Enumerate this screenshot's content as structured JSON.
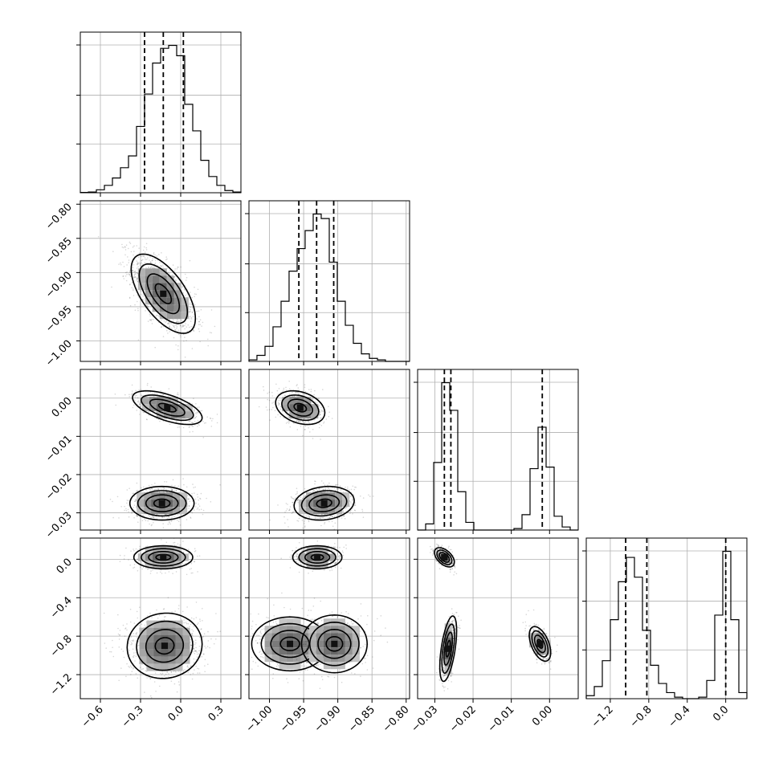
{
  "chart_data": {
    "type": "corner",
    "title": "",
    "params": [
      {
        "range": [
          -0.75,
          0.45
        ],
        "ticks": [
          -0.6,
          -0.3,
          0.0,
          0.3
        ],
        "tick_labels": [
          "−0.6",
          "−0.3",
          "0.0",
          "0.3"
        ],
        "quantiles": [
          -0.27,
          -0.13,
          0.02
        ],
        "hist_bins": [
          -0.75,
          -0.69,
          -0.63,
          -0.57,
          -0.51,
          -0.45,
          -0.39,
          -0.33,
          -0.27,
          -0.21,
          -0.15,
          -0.09,
          -0.03,
          0.03,
          0.09,
          0.15,
          0.21,
          0.27,
          0.33,
          0.39,
          0.45
        ],
        "hist_counts": [
          0.002,
          0.005,
          0.02,
          0.05,
          0.1,
          0.17,
          0.25,
          0.45,
          0.67,
          0.88,
          0.98,
          1.0,
          0.93,
          0.6,
          0.42,
          0.22,
          0.11,
          0.05,
          0.015,
          0.005
        ]
      },
      {
        "range": [
          -1.03,
          -0.795
        ],
        "ticks": [
          -1.0,
          -0.95,
          -0.9,
          -0.85,
          -0.8
        ],
        "tick_labels": [
          "−1.00",
          "−0.95",
          "−0.90",
          "−0.85",
          "−0.80"
        ],
        "quantiles": [
          -0.957,
          -0.931,
          -0.906
        ],
        "hist_bins": [
          -1.03,
          -1.0183,
          -1.0065,
          -0.9948,
          -0.983,
          -0.9713,
          -0.9595,
          -0.9478,
          -0.936,
          -0.9243,
          -0.9125,
          -0.9008,
          -0.889,
          -0.8773,
          -0.8655,
          -0.8538,
          -0.842,
          -0.8303,
          -0.8185,
          -0.8068,
          -0.795
        ],
        "hist_counts": [
          0.01,
          0.04,
          0.1,
          0.23,
          0.4,
          0.6,
          0.75,
          0.87,
          0.98,
          0.95,
          0.66,
          0.4,
          0.24,
          0.12,
          0.05,
          0.02,
          0.01,
          0.0,
          0.0,
          0.0
        ]
      },
      {
        "range": [
          -0.0345,
          0.0075
        ],
        "ticks": [
          -0.03,
          -0.02,
          -0.01,
          0.0
        ],
        "tick_labels": [
          "−0.03",
          "−0.02",
          "−0.01",
          "0.00"
        ],
        "quantiles": [
          -0.0275,
          -0.0258,
          -0.0019
        ],
        "hist_bins": [
          -0.0345,
          -0.0324,
          -0.0303,
          -0.0282,
          -0.0261,
          -0.024,
          -0.0219,
          -0.0198,
          -0.0177,
          -0.0156,
          -0.0135,
          -0.0114,
          -0.0093,
          -0.0072,
          -0.0051,
          -0.003,
          -0.0009,
          0.0012,
          0.0033,
          0.0054,
          0.0075
        ],
        "hist_counts": [
          0.0,
          0.04,
          0.44,
          0.96,
          0.78,
          0.25,
          0.05,
          0.0,
          0.0,
          0.0,
          0.0,
          0.0,
          0.01,
          0.1,
          0.4,
          0.67,
          0.41,
          0.09,
          0.02,
          0.0
        ]
      },
      {
        "range": [
          -1.45,
          0.22
        ],
        "ticks": [
          -1.2,
          -0.8,
          -0.4,
          0.0
        ],
        "tick_labels": [
          "−1.2",
          "−0.8",
          "−0.4",
          "0.0"
        ],
        "quantiles": [
          -1.04,
          -0.82,
          0.0
        ],
        "hist_bins": [
          -1.45,
          -1.3665,
          -1.283,
          -1.1995,
          -1.116,
          -1.0325,
          -0.949,
          -0.8655,
          -0.782,
          -0.6985,
          -0.615,
          -0.5315,
          -0.448,
          -0.3645,
          -0.281,
          -0.1975,
          -0.114,
          -0.0305,
          0.053,
          0.1365,
          0.22
        ],
        "hist_counts": [
          0.02,
          0.08,
          0.25,
          0.52,
          0.77,
          0.93,
          0.8,
          0.45,
          0.22,
          0.1,
          0.04,
          0.01,
          0.0,
          0.0,
          0.01,
          0.12,
          0.55,
          0.97,
          0.52,
          0.04
        ]
      }
    ],
    "pairs": [
      {
        "row": 1,
        "col": 0,
        "modes": [
          {
            "mean": [
              -0.13,
              -0.931
            ],
            "sd": [
              0.12,
              0.029
            ],
            "rho": -0.62,
            "n": 1400
          }
        ]
      },
      {
        "row": 2,
        "col": 0,
        "modes": [
          {
            "mean": [
              -0.1,
              -0.0025
            ],
            "sd": [
              0.13,
              0.0022
            ],
            "rho": -0.6,
            "n": 550
          },
          {
            "mean": [
              -0.14,
              -0.0275
            ],
            "sd": [
              0.12,
              0.0022
            ],
            "rho": 0.0,
            "n": 850
          }
        ]
      },
      {
        "row": 2,
        "col": 1,
        "modes": [
          {
            "mean": [
              -0.955,
              -0.0025
            ],
            "sd": [
              0.018,
              0.0022
            ],
            "rho": -0.3,
            "n": 550
          },
          {
            "mean": [
              -0.92,
              -0.0275
            ],
            "sd": [
              0.022,
              0.0022
            ],
            "rho": 0.15,
            "n": 850
          }
        ]
      },
      {
        "row": 3,
        "col": 0,
        "modes": [
          {
            "mean": [
              -0.13,
              0.02
            ],
            "sd": [
              0.11,
              0.06
            ],
            "rho": 0.0,
            "n": 500
          },
          {
            "mean": [
              -0.12,
              -0.9
            ],
            "sd": [
              0.14,
              0.17
            ],
            "rho": 0.05,
            "n": 900
          }
        ]
      },
      {
        "row": 3,
        "col": 1,
        "modes": [
          {
            "mean": [
              -0.93,
              0.02
            ],
            "sd": [
              0.018,
              0.06
            ],
            "rho": 0.0,
            "n": 500
          },
          {
            "mean": [
              -0.97,
              -0.88
            ],
            "sd": [
              0.028,
              0.14
            ],
            "rho": 0.0,
            "n": 450
          },
          {
            "mean": [
              -0.905,
              -0.88
            ],
            "sd": [
              0.024,
              0.15
            ],
            "rho": 0.0,
            "n": 450
          }
        ]
      },
      {
        "row": 3,
        "col": 2,
        "modes": [
          {
            "mean": [
              -0.0275,
              0.02
            ],
            "sd": [
              0.0013,
              0.05
            ],
            "rho": -0.5,
            "n": 450
          },
          {
            "mean": [
              -0.0265,
              -0.93
            ],
            "sd": [
              0.0011,
              0.17
            ],
            "rho": 0.55,
            "n": 500
          },
          {
            "mean": [
              -0.0025,
              -0.88
            ],
            "sd": [
              0.0014,
              0.09
            ],
            "rho": -0.5,
            "n": 450
          }
        ]
      }
    ]
  }
}
